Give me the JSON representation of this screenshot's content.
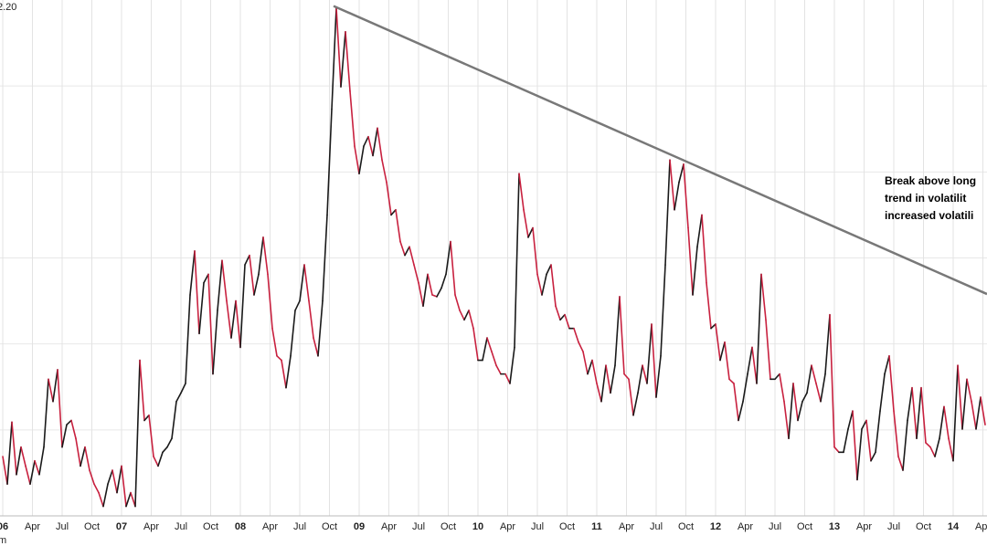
{
  "chart_data": {
    "type": "line",
    "corner_label": "2.20",
    "source_fragment": "m",
    "annotation": [
      "Break above long",
      "trend in volatilit",
      "increased volatili"
    ],
    "xlim": [
      -1.2,
      430.8
    ],
    "ylim": [
      0,
      6
    ],
    "gridlines": [
      1,
      2,
      3,
      4,
      5
    ],
    "xticks": [
      {
        "value": 0,
        "label": "06"
      },
      {
        "value": 13,
        "label": "Apr"
      },
      {
        "value": 26,
        "label": "Jul"
      },
      {
        "value": 39,
        "label": "Oct"
      },
      {
        "value": 52,
        "label": "07"
      },
      {
        "value": 65,
        "label": "Apr"
      },
      {
        "value": 78,
        "label": "Jul"
      },
      {
        "value": 91,
        "label": "Oct"
      },
      {
        "value": 104,
        "label": "08"
      },
      {
        "value": 117,
        "label": "Apr"
      },
      {
        "value": 130,
        "label": "Jul"
      },
      {
        "value": 143,
        "label": "Oct"
      },
      {
        "value": 156,
        "label": "09"
      },
      {
        "value": 169,
        "label": "Apr"
      },
      {
        "value": 182,
        "label": "Jul"
      },
      {
        "value": 195,
        "label": "Oct"
      },
      {
        "value": 208,
        "label": "10"
      },
      {
        "value": 221,
        "label": "Apr"
      },
      {
        "value": 234,
        "label": "Jul"
      },
      {
        "value": 247,
        "label": "Oct"
      },
      {
        "value": 260,
        "label": "11"
      },
      {
        "value": 273,
        "label": "Apr"
      },
      {
        "value": 286,
        "label": "Jul"
      },
      {
        "value": 299,
        "label": "Oct"
      },
      {
        "value": 312,
        "label": "12"
      },
      {
        "value": 325,
        "label": "Apr"
      },
      {
        "value": 338,
        "label": "Jul"
      },
      {
        "value": 351,
        "label": "Oct"
      },
      {
        "value": 364,
        "label": "13"
      },
      {
        "value": 377,
        "label": "Apr"
      },
      {
        "value": 390,
        "label": "Jul"
      },
      {
        "value": 403,
        "label": "Oct"
      },
      {
        "value": 416,
        "label": "14"
      },
      {
        "value": 429,
        "label": "Apr"
      }
    ],
    "up_color": "#1a1a1a",
    "down_color": "#c8213f",
    "trendline": {
      "x": [
        144.8,
        430.8
      ],
      "y": [
        5.93,
        2.58
      ],
      "color": "#787878"
    },
    "series": [
      {
        "x": [
          0,
          2,
          4,
          6,
          8,
          10,
          12,
          14,
          16,
          18,
          20,
          22,
          24,
          26,
          28,
          30,
          32,
          34,
          36,
          38,
          40,
          42,
          44,
          46,
          48,
          50,
          52,
          54,
          56,
          58,
          60,
          62,
          64,
          66,
          68,
          70,
          72,
          74,
          76,
          78,
          80,
          82,
          84,
          86,
          88,
          90,
          92,
          94,
          96,
          98,
          100,
          102,
          104,
          106,
          108,
          110,
          112,
          114,
          116,
          118,
          120,
          122,
          124,
          126,
          128,
          130,
          132,
          134,
          136,
          138,
          140,
          142,
          144,
          146,
          148,
          150,
          152,
          154,
          156,
          158,
          160,
          162,
          164,
          166,
          168,
          170,
          172,
          174,
          176,
          178,
          180,
          182,
          184,
          186,
          188,
          190,
          192,
          194,
          196,
          198,
          200,
          202,
          204,
          206,
          208,
          210,
          212,
          214,
          216,
          218,
          220,
          222,
          224,
          226,
          228,
          230,
          232,
          234,
          236,
          238,
          240,
          242,
          244,
          246,
          248,
          250,
          252,
          254,
          256,
          258,
          260,
          262,
          264,
          266,
          268,
          270,
          272,
          274,
          276,
          278,
          280,
          282,
          284,
          286,
          288,
          290,
          292,
          294,
          296,
          298,
          300,
          302,
          304,
          306,
          308,
          310,
          312,
          314,
          316,
          318,
          320,
          322,
          324,
          326,
          328,
          330,
          332,
          334,
          336,
          338,
          340,
          342,
          344,
          346,
          348,
          350,
          352,
          354,
          356,
          358,
          360,
          362,
          364,
          366,
          368,
          370,
          372,
          374,
          376,
          378,
          380,
          382,
          384,
          386,
          388,
          390,
          392,
          394,
          396,
          398,
          400,
          402,
          404,
          406,
          408,
          410,
          412,
          414,
          416,
          418,
          420,
          422,
          424,
          426,
          428,
          430
        ],
        "values": [
          0.69,
          0.37,
          1.09,
          0.48,
          0.8,
          0.58,
          0.37,
          0.64,
          0.48,
          0.8,
          1.59,
          1.33,
          1.7,
          0.8,
          1.06,
          1.11,
          0.9,
          0.58,
          0.8,
          0.53,
          0.37,
          0.27,
          0.11,
          0.37,
          0.53,
          0.27,
          0.58,
          0.11,
          0.27,
          0.11,
          1.81,
          1.11,
          1.17,
          0.69,
          0.58,
          0.74,
          0.8,
          0.9,
          1.33,
          1.43,
          1.54,
          2.57,
          3.08,
          2.12,
          2.71,
          2.81,
          1.65,
          2.39,
          2.97,
          2.5,
          2.07,
          2.5,
          1.96,
          2.92,
          3.03,
          2.57,
          2.81,
          3.24,
          2.81,
          2.18,
          1.86,
          1.81,
          1.49,
          1.86,
          2.39,
          2.5,
          2.92,
          2.5,
          2.07,
          1.86,
          2.5,
          3.5,
          4.73,
          5.91,
          4.99,
          5.63,
          4.94,
          4.3,
          3.98,
          4.3,
          4.41,
          4.19,
          4.51,
          4.14,
          3.88,
          3.5,
          3.56,
          3.19,
          3.03,
          3.13,
          2.92,
          2.71,
          2.44,
          2.81,
          2.57,
          2.55,
          2.65,
          2.81,
          3.19,
          2.57,
          2.39,
          2.28,
          2.39,
          2.18,
          1.81,
          1.81,
          2.07,
          1.91,
          1.75,
          1.65,
          1.65,
          1.54,
          1.96,
          3.98,
          3.56,
          3.24,
          3.35,
          2.81,
          2.57,
          2.81,
          2.92,
          2.44,
          2.28,
          2.34,
          2.18,
          2.18,
          2.02,
          1.91,
          1.65,
          1.81,
          1.54,
          1.33,
          1.75,
          1.43,
          1.75,
          2.55,
          1.65,
          1.59,
          1.17,
          1.43,
          1.75,
          1.54,
          2.23,
          1.38,
          1.86,
          2.92,
          4.14,
          3.56,
          3.88,
          4.09,
          3.35,
          2.57,
          3.13,
          3.5,
          2.71,
          2.18,
          2.23,
          1.81,
          2.02,
          1.59,
          1.54,
          1.11,
          1.33,
          1.65,
          1.96,
          1.54,
          2.81,
          2.28,
          1.59,
          1.59,
          1.65,
          1.33,
          0.9,
          1.54,
          1.11,
          1.33,
          1.43,
          1.75,
          1.54,
          1.33,
          1.65,
          2.34,
          0.8,
          0.74,
          0.74,
          1.01,
          1.22,
          0.42,
          1.01,
          1.11,
          0.64,
          0.74,
          1.22,
          1.65,
          1.86,
          1.22,
          0.69,
          0.53,
          1.11,
          1.49,
          0.9,
          1.49,
          0.85,
          0.8,
          0.69,
          0.9,
          1.27,
          0.9,
          0.64,
          1.75,
          1.01,
          1.59,
          1.33,
          1.01,
          1.38,
          1.06
        ]
      }
    ]
  }
}
